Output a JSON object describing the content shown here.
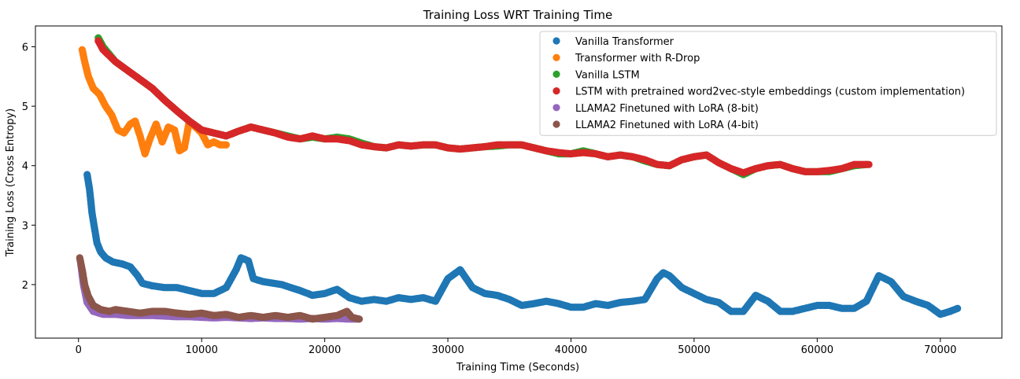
{
  "chart_data": {
    "type": "scatter",
    "title": "Training Loss WRT Training Time",
    "xlabel": "Training Time (Seconds)",
    "ylabel": "Training Loss (Cross Entropy)",
    "xlim": [
      -3500,
      75000
    ],
    "ylim": [
      1.1,
      6.35
    ],
    "xticks": [
      0,
      10000,
      20000,
      30000,
      40000,
      50000,
      60000,
      70000
    ],
    "yticks": [
      2,
      3,
      4,
      5,
      6
    ],
    "grid": false,
    "legend_position": "top-right",
    "series": [
      {
        "name": "Vanilla Transformer",
        "color": "#1f77b4",
        "points": [
          [
            700,
            3.85
          ],
          [
            900,
            3.6
          ],
          [
            1100,
            3.2
          ],
          [
            1300,
            2.95
          ],
          [
            1500,
            2.7
          ],
          [
            1800,
            2.55
          ],
          [
            2200,
            2.45
          ],
          [
            2800,
            2.38
          ],
          [
            3500,
            2.35
          ],
          [
            4200,
            2.3
          ],
          [
            4800,
            2.15
          ],
          [
            5200,
            2.02
          ],
          [
            6000,
            1.98
          ],
          [
            7000,
            1.95
          ],
          [
            8000,
            1.95
          ],
          [
            9000,
            1.9
          ],
          [
            10000,
            1.85
          ],
          [
            11000,
            1.85
          ],
          [
            12000,
            1.95
          ],
          [
            12800,
            2.25
          ],
          [
            13200,
            2.45
          ],
          [
            13800,
            2.4
          ],
          [
            14200,
            2.1
          ],
          [
            15000,
            2.05
          ],
          [
            16500,
            2.0
          ],
          [
            18000,
            1.9
          ],
          [
            19000,
            1.82
          ],
          [
            20000,
            1.85
          ],
          [
            21000,
            1.92
          ],
          [
            22000,
            1.78
          ],
          [
            23000,
            1.72
          ],
          [
            24000,
            1.75
          ],
          [
            25000,
            1.72
          ],
          [
            26000,
            1.78
          ],
          [
            27000,
            1.75
          ],
          [
            28000,
            1.78
          ],
          [
            29000,
            1.72
          ],
          [
            30000,
            2.1
          ],
          [
            31000,
            2.25
          ],
          [
            32000,
            1.95
          ],
          [
            33000,
            1.85
          ],
          [
            34000,
            1.82
          ],
          [
            35000,
            1.75
          ],
          [
            36000,
            1.65
          ],
          [
            37000,
            1.68
          ],
          [
            38000,
            1.72
          ],
          [
            39000,
            1.68
          ],
          [
            40000,
            1.62
          ],
          [
            41000,
            1.62
          ],
          [
            42000,
            1.68
          ],
          [
            43000,
            1.65
          ],
          [
            44000,
            1.7
          ],
          [
            45000,
            1.72
          ],
          [
            46000,
            1.75
          ],
          [
            47000,
            2.1
          ],
          [
            47500,
            2.2
          ],
          [
            48000,
            2.15
          ],
          [
            49000,
            1.95
          ],
          [
            50000,
            1.85
          ],
          [
            51000,
            1.75
          ],
          [
            52000,
            1.7
          ],
          [
            53000,
            1.55
          ],
          [
            54000,
            1.55
          ],
          [
            55000,
            1.82
          ],
          [
            56000,
            1.72
          ],
          [
            57000,
            1.55
          ],
          [
            58000,
            1.55
          ],
          [
            59000,
            1.6
          ],
          [
            60000,
            1.65
          ],
          [
            61000,
            1.65
          ],
          [
            62000,
            1.6
          ],
          [
            63000,
            1.6
          ],
          [
            64000,
            1.72
          ],
          [
            65000,
            2.15
          ],
          [
            66000,
            2.05
          ],
          [
            67000,
            1.8
          ],
          [
            68000,
            1.72
          ],
          [
            69000,
            1.65
          ],
          [
            70000,
            1.5
          ],
          [
            70800,
            1.55
          ],
          [
            71400,
            1.6
          ]
        ]
      },
      {
        "name": "Transformer with R-Drop",
        "color": "#ff7f0e",
        "points": [
          [
            300,
            5.95
          ],
          [
            500,
            5.75
          ],
          [
            800,
            5.5
          ],
          [
            1200,
            5.3
          ],
          [
            1700,
            5.2
          ],
          [
            2200,
            5.0
          ],
          [
            2700,
            4.85
          ],
          [
            3200,
            4.6
          ],
          [
            3700,
            4.55
          ],
          [
            4200,
            4.7
          ],
          [
            4600,
            4.75
          ],
          [
            5000,
            4.5
          ],
          [
            5400,
            4.2
          ],
          [
            5800,
            4.45
          ],
          [
            6300,
            4.7
          ],
          [
            6800,
            4.4
          ],
          [
            7300,
            4.65
          ],
          [
            7800,
            4.6
          ],
          [
            8200,
            4.25
          ],
          [
            8600,
            4.3
          ],
          [
            9000,
            4.75
          ],
          [
            9500,
            4.65
          ],
          [
            10000,
            4.55
          ],
          [
            10500,
            4.35
          ],
          [
            11000,
            4.4
          ],
          [
            11500,
            4.35
          ],
          [
            12000,
            4.35
          ]
        ]
      },
      {
        "name": "Vanilla LSTM",
        "color": "#2ca02c",
        "points": [
          [
            1600,
            6.15
          ],
          [
            2000,
            6.0
          ],
          [
            3000,
            5.75
          ],
          [
            4000,
            5.6
          ],
          [
            5000,
            5.45
          ],
          [
            6000,
            5.3
          ],
          [
            7000,
            5.1
          ],
          [
            8000,
            4.92
          ],
          [
            9000,
            4.75
          ],
          [
            10000,
            4.6
          ],
          [
            11000,
            4.55
          ],
          [
            12000,
            4.5
          ],
          [
            13000,
            4.58
          ],
          [
            14000,
            4.65
          ],
          [
            15000,
            4.6
          ],
          [
            16000,
            4.55
          ],
          [
            17000,
            4.5
          ],
          [
            18000,
            4.45
          ],
          [
            19000,
            4.48
          ],
          [
            20000,
            4.45
          ],
          [
            21000,
            4.48
          ],
          [
            22000,
            4.45
          ],
          [
            23000,
            4.38
          ],
          [
            24000,
            4.32
          ],
          [
            25000,
            4.3
          ],
          [
            26000,
            4.35
          ],
          [
            27000,
            4.33
          ],
          [
            28000,
            4.35
          ],
          [
            29000,
            4.35
          ],
          [
            30000,
            4.3
          ],
          [
            31000,
            4.28
          ],
          [
            32000,
            4.3
          ],
          [
            33000,
            4.32
          ],
          [
            34000,
            4.33
          ],
          [
            35000,
            4.35
          ],
          [
            36000,
            4.35
          ],
          [
            37000,
            4.3
          ],
          [
            38000,
            4.25
          ],
          [
            39000,
            4.2
          ],
          [
            40000,
            4.2
          ],
          [
            41000,
            4.25
          ],
          [
            42000,
            4.2
          ],
          [
            43000,
            4.15
          ],
          [
            44000,
            4.18
          ],
          [
            45000,
            4.15
          ],
          [
            46000,
            4.08
          ],
          [
            47000,
            4.02
          ],
          [
            48000,
            4.0
          ],
          [
            49000,
            4.1
          ],
          [
            50000,
            4.15
          ],
          [
            51000,
            4.18
          ],
          [
            52000,
            4.05
          ],
          [
            53000,
            3.95
          ],
          [
            54000,
            3.85
          ],
          [
            55000,
            3.95
          ],
          [
            56000,
            4.0
          ],
          [
            57000,
            4.02
          ],
          [
            58000,
            3.95
          ],
          [
            59000,
            3.9
          ],
          [
            60000,
            3.9
          ],
          [
            61000,
            3.9
          ],
          [
            62000,
            3.95
          ],
          [
            63000,
            4.0
          ],
          [
            64000,
            4.02
          ]
        ]
      },
      {
        "name": "LSTM with pretrained word2vec-style embeddings (custom implementation)",
        "color": "#d62728",
        "points": [
          [
            1600,
            6.1
          ],
          [
            2000,
            5.95
          ],
          [
            3000,
            5.75
          ],
          [
            4000,
            5.6
          ],
          [
            5000,
            5.45
          ],
          [
            6000,
            5.3
          ],
          [
            7000,
            5.1
          ],
          [
            8000,
            4.92
          ],
          [
            9000,
            4.75
          ],
          [
            10000,
            4.6
          ],
          [
            11000,
            4.55
          ],
          [
            12000,
            4.5
          ],
          [
            13000,
            4.58
          ],
          [
            14000,
            4.65
          ],
          [
            15000,
            4.6
          ],
          [
            16000,
            4.55
          ],
          [
            17000,
            4.48
          ],
          [
            18000,
            4.45
          ],
          [
            19000,
            4.5
          ],
          [
            20000,
            4.45
          ],
          [
            21000,
            4.45
          ],
          [
            22000,
            4.42
          ],
          [
            23000,
            4.35
          ],
          [
            24000,
            4.32
          ],
          [
            25000,
            4.3
          ],
          [
            26000,
            4.35
          ],
          [
            27000,
            4.33
          ],
          [
            28000,
            4.35
          ],
          [
            29000,
            4.35
          ],
          [
            30000,
            4.3
          ],
          [
            31000,
            4.28
          ],
          [
            32000,
            4.3
          ],
          [
            33000,
            4.32
          ],
          [
            34000,
            4.35
          ],
          [
            35000,
            4.35
          ],
          [
            36000,
            4.35
          ],
          [
            37000,
            4.3
          ],
          [
            38000,
            4.25
          ],
          [
            39000,
            4.22
          ],
          [
            40000,
            4.2
          ],
          [
            41000,
            4.22
          ],
          [
            42000,
            4.2
          ],
          [
            43000,
            4.15
          ],
          [
            44000,
            4.18
          ],
          [
            45000,
            4.15
          ],
          [
            46000,
            4.1
          ],
          [
            47000,
            4.02
          ],
          [
            48000,
            4.0
          ],
          [
            49000,
            4.1
          ],
          [
            50000,
            4.15
          ],
          [
            51000,
            4.18
          ],
          [
            52000,
            4.05
          ],
          [
            53000,
            3.95
          ],
          [
            54000,
            3.88
          ],
          [
            55000,
            3.95
          ],
          [
            56000,
            4.0
          ],
          [
            57000,
            4.02
          ],
          [
            58000,
            3.95
          ],
          [
            59000,
            3.9
          ],
          [
            60000,
            3.9
          ],
          [
            61000,
            3.92
          ],
          [
            62000,
            3.95
          ],
          [
            63000,
            4.02
          ],
          [
            64200,
            4.02
          ]
        ]
      },
      {
        "name": "LLAMA2 Finetuned with LoRA (8-bit)",
        "color": "#9467bd",
        "points": [
          [
            150,
            2.4
          ],
          [
            400,
            2.0
          ],
          [
            700,
            1.7
          ],
          [
            1200,
            1.55
          ],
          [
            2000,
            1.5
          ],
          [
            3000,
            1.5
          ],
          [
            4000,
            1.48
          ],
          [
            5000,
            1.48
          ],
          [
            6000,
            1.48
          ],
          [
            7000,
            1.47
          ],
          [
            8000,
            1.46
          ],
          [
            9000,
            1.46
          ],
          [
            10000,
            1.45
          ],
          [
            11000,
            1.44
          ],
          [
            12000,
            1.45
          ],
          [
            13000,
            1.44
          ],
          [
            14000,
            1.43
          ],
          [
            15000,
            1.44
          ],
          [
            16000,
            1.43
          ],
          [
            17000,
            1.43
          ],
          [
            18000,
            1.42
          ],
          [
            19000,
            1.43
          ],
          [
            20000,
            1.42
          ],
          [
            21000,
            1.43
          ],
          [
            22000,
            1.42
          ],
          [
            22800,
            1.42
          ]
        ]
      },
      {
        "name": "LLAMA2 Finetuned with LoRA (4-bit)",
        "color": "#8c564b",
        "points": [
          [
            100,
            2.45
          ],
          [
            300,
            2.25
          ],
          [
            500,
            2.0
          ],
          [
            800,
            1.8
          ],
          [
            1200,
            1.65
          ],
          [
            1800,
            1.58
          ],
          [
            2500,
            1.55
          ],
          [
            3000,
            1.58
          ],
          [
            4000,
            1.55
          ],
          [
            5000,
            1.52
          ],
          [
            6000,
            1.55
          ],
          [
            7000,
            1.55
          ],
          [
            8000,
            1.52
          ],
          [
            9000,
            1.5
          ],
          [
            10000,
            1.52
          ],
          [
            11000,
            1.48
          ],
          [
            12000,
            1.5
          ],
          [
            13000,
            1.45
          ],
          [
            14000,
            1.48
          ],
          [
            15000,
            1.45
          ],
          [
            16000,
            1.48
          ],
          [
            17000,
            1.45
          ],
          [
            18000,
            1.48
          ],
          [
            19000,
            1.42
          ],
          [
            20000,
            1.45
          ],
          [
            21000,
            1.48
          ],
          [
            21800,
            1.55
          ],
          [
            22200,
            1.45
          ],
          [
            22800,
            1.42
          ]
        ]
      }
    ]
  }
}
